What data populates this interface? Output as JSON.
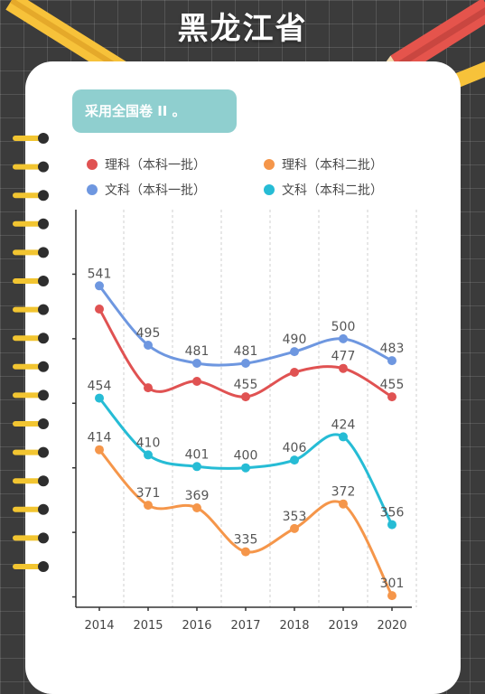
{
  "page": {
    "title": "黑龙江省",
    "note": "采用全国卷 II 。"
  },
  "colors": {
    "background": "#3b3b3b",
    "card": "#ffffff",
    "note_box": "#8fcfcf",
    "grid": "#c9c9c9"
  },
  "icons": [
    "pencil-icon",
    "pencil-icon",
    "pencil-icon",
    "spiral-binding-ring-icon"
  ],
  "chart_data": {
    "type": "line",
    "x": [
      "2014",
      "2015",
      "2016",
      "2017",
      "2018",
      "2019",
      "2020"
    ],
    "ylim": [
      292,
      600
    ],
    "y_ticks": [
      300,
      350,
      400,
      450,
      500,
      550
    ],
    "grid": "vertical-dashed",
    "legend_position": "top",
    "series": [
      {
        "name": "理科（本科一批）",
        "color": "#e05252",
        "values": [
          523,
          462,
          467,
          455,
          474,
          477,
          455
        ],
        "labels": [
          null,
          null,
          null,
          "455",
          null,
          "477",
          "455"
        ]
      },
      {
        "name": "理科（本科二批）",
        "color": "#f5964a",
        "values": [
          414,
          371,
          369,
          335,
          353,
          372,
          301
        ],
        "labels": [
          "414",
          "371",
          "369",
          "335",
          "353",
          "372",
          "301"
        ]
      },
      {
        "name": "文科（本科一批）",
        "color": "#6e97e0",
        "values": [
          541,
          495,
          481,
          481,
          490,
          500,
          483
        ],
        "labels": [
          "541",
          "495",
          "481",
          "481",
          "490",
          "500",
          "483"
        ]
      },
      {
        "name": "文科（本科二批）",
        "color": "#26bcd5",
        "values": [
          454,
          410,
          401,
          400,
          406,
          424,
          356
        ],
        "labels": [
          "454",
          "410",
          "401",
          "400",
          "406",
          "424",
          "356"
        ]
      }
    ]
  }
}
